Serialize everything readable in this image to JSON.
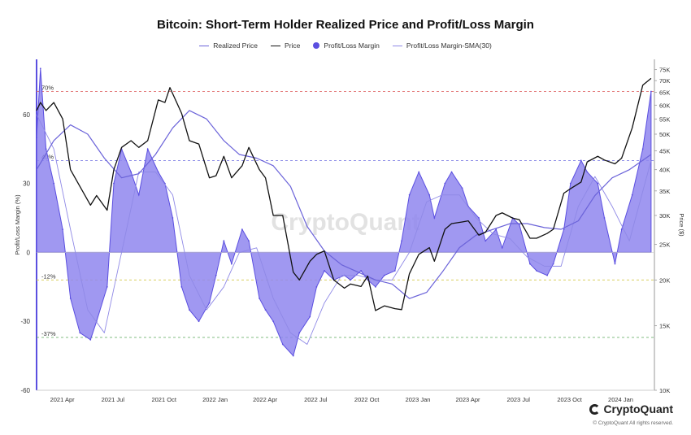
{
  "title": "Bitcoin: Short-Term Holder Realized Price and Profit/Loss Margin",
  "legend": [
    {
      "label": "Realized Price",
      "type": "line",
      "color": "#6b63d9"
    },
    {
      "label": "Price",
      "type": "line",
      "color": "#111111"
    },
    {
      "label": "Profit/Loss Margin",
      "type": "dot",
      "color": "#5b4fe0"
    },
    {
      "label": "Profit/Loss Margin-SMA(30)",
      "type": "line",
      "color": "#8f89e6"
    }
  ],
  "watermark": "CryptoQuant",
  "footer": {
    "logo_text": "CryptoQuant",
    "copyright": "© CryptoQuant All rights reserved."
  },
  "colors": {
    "margin_fill": "#8f86ee",
    "margin_stroke": "#5b4fe0",
    "realized": "#6b63d9",
    "price": "#111111",
    "sma": "#8f89e6",
    "ref_70": "#e06a6a",
    "ref_20": "#6a6ae0",
    "ref_neg12": "#d4c84a",
    "ref_neg37": "#5aa85a"
  },
  "chart_data": {
    "type": "line",
    "title": "Bitcoin: Short-Term Holder Realized Price and Profit/Loss Margin",
    "ylabel_left": "Profit/Loss Margin (%)",
    "ylabel_right": "Price ($)",
    "y_left_ticks": [
      -60,
      -30,
      0,
      30,
      60
    ],
    "y_left_range": [
      -60,
      84
    ],
    "y_right_ticks": [
      10000,
      15000,
      20000,
      25000,
      30000,
      35000,
      40000,
      45000,
      50000,
      55000,
      60000,
      65000,
      70000,
      75000
    ],
    "y_right_tick_labels": [
      "10K",
      "15K",
      "20K",
      "25K",
      "30K",
      "35K",
      "40K",
      "45K",
      "50K",
      "55K",
      "60K",
      "65K",
      "70K",
      "75K"
    ],
    "y_right_range": [
      10000,
      80000
    ],
    "y_right_scale": "log",
    "x_range": [
      "2021-03-15",
      "2024-03-31"
    ],
    "x_ticks": [
      "2021-04-01",
      "2021-07-01",
      "2021-10-01",
      "2022-01-01",
      "2022-04-01",
      "2022-07-01",
      "2022-10-01",
      "2023-01-01",
      "2023-04-01",
      "2023-07-01",
      "2023-10-01",
      "2024-01-01"
    ],
    "x_tick_labels": [
      "2021 Apr",
      "2021 Jul",
      "2021 Oct",
      "2022 Jan",
      "2022 Apr",
      "2022 Jul",
      "2022 Oct",
      "2023 Jan",
      "2023 Apr",
      "2023 Jul",
      "2023 Oct",
      "2024 Jan"
    ],
    "reference_lines": [
      {
        "value": 70,
        "label": "70%"
      },
      {
        "value": 40,
        "label": "40%"
      },
      {
        "value": -12,
        "label": "-12%"
      },
      {
        "value": -37,
        "label": "-37%"
      }
    ],
    "series": [
      {
        "name": "Profit/Loss Margin",
        "axis": "left",
        "style": "area",
        "x": [
          "2021-03-15",
          "2021-03-22",
          "2021-04-01",
          "2021-04-15",
          "2021-05-01",
          "2021-05-15",
          "2021-06-01",
          "2021-06-20",
          "2021-07-01",
          "2021-07-20",
          "2021-08-01",
          "2021-08-15",
          "2021-09-01",
          "2021-09-15",
          "2021-10-01",
          "2021-10-20",
          "2021-11-01",
          "2021-11-15",
          "2021-12-01",
          "2021-12-15",
          "2022-01-01",
          "2022-01-20",
          "2022-02-01",
          "2022-02-15",
          "2022-03-01",
          "2022-03-20",
          "2022-04-01",
          "2022-04-20",
          "2022-05-01",
          "2022-05-15",
          "2022-06-01",
          "2022-06-20",
          "2022-07-01",
          "2022-07-20",
          "2022-08-01",
          "2022-08-15",
          "2022-09-01",
          "2022-09-20",
          "2022-10-01",
          "2022-10-20",
          "2022-11-01",
          "2022-11-15",
          "2022-12-01",
          "2022-12-20",
          "2023-01-01",
          "2023-01-15",
          "2023-02-01",
          "2023-02-20",
          "2023-03-01",
          "2023-03-20",
          "2023-04-01",
          "2023-04-20",
          "2023-05-01",
          "2023-05-20",
          "2023-06-01",
          "2023-06-20",
          "2023-07-01",
          "2023-07-20",
          "2023-08-01",
          "2023-08-20",
          "2023-09-01",
          "2023-09-20",
          "2023-10-01",
          "2023-10-20",
          "2023-11-01",
          "2023-11-20",
          "2023-12-01",
          "2023-12-20",
          "2024-01-01",
          "2024-01-20",
          "2024-02-01",
          "2024-02-20",
          "2024-03-10",
          "2024-03-25"
        ],
        "values": [
          50,
          80,
          45,
          30,
          10,
          -20,
          -35,
          -38,
          -30,
          -15,
          30,
          45,
          35,
          25,
          45,
          35,
          30,
          15,
          -15,
          -25,
          -30,
          -22,
          -10,
          5,
          -5,
          10,
          5,
          -20,
          -25,
          -30,
          -40,
          -45,
          -35,
          -28,
          -15,
          -8,
          -12,
          -10,
          -12,
          -8,
          -12,
          -15,
          -10,
          -8,
          5,
          25,
          35,
          25,
          15,
          30,
          35,
          28,
          20,
          15,
          5,
          10,
          2,
          15,
          12,
          -5,
          -8,
          -10,
          -5,
          10,
          30,
          40,
          35,
          30,
          15,
          -5,
          10,
          25,
          45,
          70
        ]
      },
      {
        "name": "Profit/Loss Margin-SMA(30)",
        "axis": "left",
        "style": "line",
        "x": [
          "2021-03-15",
          "2021-04-15",
          "2021-05-15",
          "2021-06-15",
          "2021-07-15",
          "2021-08-15",
          "2021-09-15",
          "2021-10-15",
          "2021-11-15",
          "2021-12-15",
          "2022-01-15",
          "2022-02-15",
          "2022-03-15",
          "2022-04-15",
          "2022-05-15",
          "2022-06-15",
          "2022-07-15",
          "2022-08-15",
          "2022-09-15",
          "2022-10-15",
          "2022-11-15",
          "2022-12-15",
          "2023-01-15",
          "2023-02-15",
          "2023-03-15",
          "2023-04-15",
          "2023-05-15",
          "2023-06-15",
          "2023-07-15",
          "2023-08-15",
          "2023-09-15",
          "2023-10-15",
          "2023-11-15",
          "2023-12-15",
          "2024-01-15",
          "2024-02-15",
          "2024-03-25"
        ],
        "values": [
          60,
          45,
          10,
          -25,
          -35,
          0,
          35,
          35,
          25,
          -10,
          -25,
          -15,
          0,
          2,
          -20,
          -35,
          -40,
          -22,
          -10,
          -10,
          -12,
          -12,
          0,
          22,
          25,
          25,
          15,
          8,
          6,
          -2,
          -6,
          -6,
          20,
          33,
          20,
          5,
          40
        ]
      },
      {
        "name": "Realized Price",
        "axis": "right",
        "style": "line",
        "x": [
          "2021-03-15",
          "2021-04-15",
          "2021-05-15",
          "2021-06-15",
          "2021-07-15",
          "2021-08-15",
          "2021-09-15",
          "2021-10-15",
          "2021-11-15",
          "2021-12-15",
          "2022-01-15",
          "2022-02-15",
          "2022-03-15",
          "2022-04-15",
          "2022-05-15",
          "2022-06-15",
          "2022-07-15",
          "2022-08-15",
          "2022-09-15",
          "2022-10-15",
          "2022-11-15",
          "2022-12-15",
          "2023-01-15",
          "2023-02-15",
          "2023-03-15",
          "2023-04-15",
          "2023-05-15",
          "2023-06-15",
          "2023-07-15",
          "2023-08-15",
          "2023-09-15",
          "2023-10-15",
          "2023-11-15",
          "2023-12-15",
          "2024-01-15",
          "2024-02-15",
          "2024-03-25"
        ],
        "values": [
          40000,
          48000,
          53000,
          50000,
          43000,
          38000,
          39000,
          44000,
          52000,
          58000,
          55000,
          48000,
          44000,
          43000,
          41000,
          36000,
          28000,
          24000,
          22000,
          21000,
          20000,
          19500,
          17800,
          18500,
          21000,
          24500,
          26500,
          27500,
          28500,
          28500,
          27800,
          27500,
          29000,
          34000,
          38000,
          40000,
          44000
        ]
      },
      {
        "name": "Price",
        "axis": "right",
        "style": "line",
        "x": [
          "2021-03-15",
          "2021-03-22",
          "2021-04-01",
          "2021-04-15",
          "2021-05-01",
          "2021-05-15",
          "2021-06-01",
          "2021-06-20",
          "2021-07-01",
          "2021-07-20",
          "2021-08-01",
          "2021-08-15",
          "2021-09-01",
          "2021-09-15",
          "2021-10-01",
          "2021-10-20",
          "2021-11-01",
          "2021-11-10",
          "2021-12-01",
          "2021-12-15",
          "2022-01-01",
          "2022-01-20",
          "2022-02-01",
          "2022-02-15",
          "2022-03-01",
          "2022-03-20",
          "2022-04-01",
          "2022-04-20",
          "2022-05-01",
          "2022-05-15",
          "2022-06-01",
          "2022-06-20",
          "2022-07-01",
          "2022-07-20",
          "2022-08-01",
          "2022-08-15",
          "2022-09-01",
          "2022-09-20",
          "2022-10-01",
          "2022-10-20",
          "2022-11-01",
          "2022-11-15",
          "2022-12-01",
          "2022-12-20",
          "2023-01-01",
          "2023-01-15",
          "2023-02-01",
          "2023-02-20",
          "2023-03-01",
          "2023-03-20",
          "2023-04-01",
          "2023-04-20",
          "2023-05-01",
          "2023-05-20",
          "2023-06-01",
          "2023-06-20",
          "2023-07-01",
          "2023-07-20",
          "2023-08-01",
          "2023-08-20",
          "2023-09-01",
          "2023-09-20",
          "2023-10-01",
          "2023-10-20",
          "2023-11-01",
          "2023-11-20",
          "2023-12-01",
          "2023-12-20",
          "2024-01-01",
          "2024-01-20",
          "2024-02-01",
          "2024-02-20",
          "2024-03-10",
          "2024-03-25"
        ],
        "values": [
          58000,
          61000,
          58000,
          61000,
          55000,
          40000,
          36000,
          32000,
          34000,
          31000,
          40000,
          46000,
          48000,
          46000,
          48000,
          62000,
          61000,
          67000,
          57000,
          48000,
          47000,
          38000,
          38500,
          43500,
          38000,
          41000,
          46000,
          40000,
          38000,
          30000,
          30000,
          21000,
          20000,
          22500,
          23500,
          24000,
          20000,
          19000,
          19500,
          19200,
          20500,
          16500,
          17000,
          16700,
          16600,
          20800,
          23500,
          24500,
          22500,
          27500,
          28500,
          28800,
          29000,
          26500,
          27000,
          30000,
          30500,
          29500,
          29200,
          26000,
          26000,
          26800,
          27500,
          34500,
          35500,
          37000,
          42000,
          43500,
          42500,
          41500,
          43000,
          52000,
          68000,
          71000
        ]
      }
    ]
  }
}
